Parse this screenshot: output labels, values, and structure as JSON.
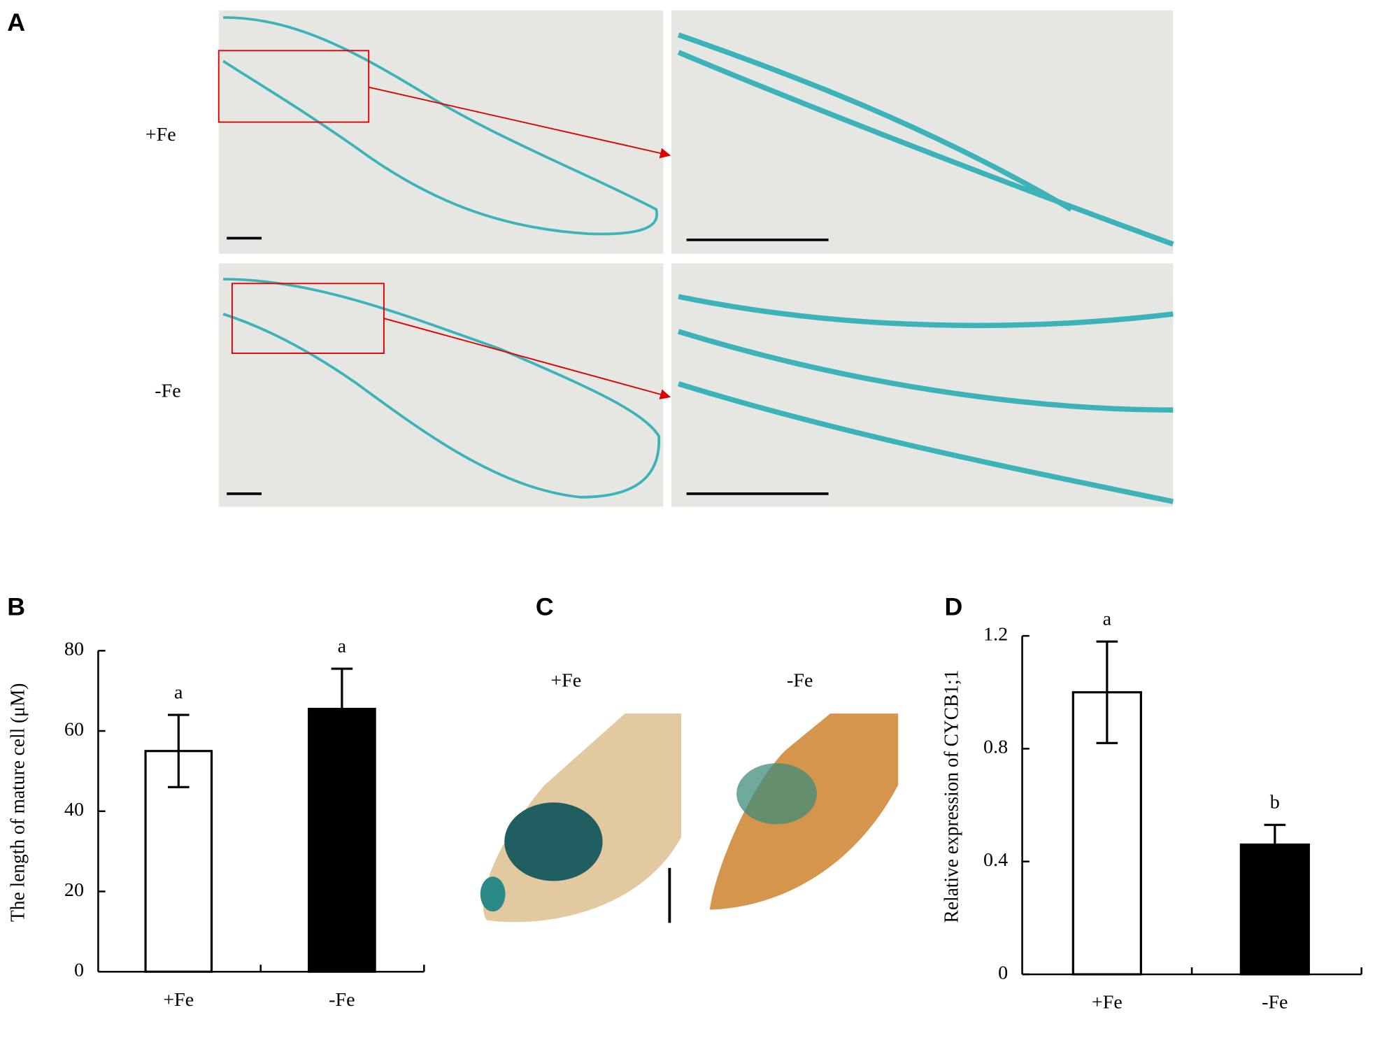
{
  "panels": {
    "a": {
      "label": "A",
      "rows": [
        "+Fe",
        "-Fe"
      ]
    },
    "b": {
      "label": "B"
    },
    "c": {
      "label": "C",
      "columns": [
        "+Fe",
        "-Fe"
      ]
    },
    "d": {
      "label": "D"
    }
  },
  "chart_data": [
    {
      "type": "bar",
      "y_label": "The length of mature cell (μM)",
      "categories": [
        "+Fe",
        "-Fe"
      ],
      "values": [
        55,
        65.5
      ],
      "errors": [
        9,
        10
      ],
      "annotations": [
        "a",
        "a"
      ],
      "colors": [
        "#ffffff",
        "#000000"
      ],
      "ylim": [
        0,
        80
      ],
      "yticks": [
        0,
        20,
        40,
        60,
        80
      ]
    },
    {
      "type": "bar",
      "y_label": "Relative expression of CYCB1;1",
      "categories": [
        "+Fe",
        "-Fe"
      ],
      "values": [
        1.0,
        0.46
      ],
      "errors": [
        0.18,
        0.07
      ],
      "annotations": [
        "a",
        "b"
      ],
      "colors": [
        "#ffffff",
        "#000000"
      ],
      "ylim": [
        0,
        1.2
      ],
      "yticks": [
        0,
        0.4,
        0.8,
        1.2
      ]
    }
  ]
}
